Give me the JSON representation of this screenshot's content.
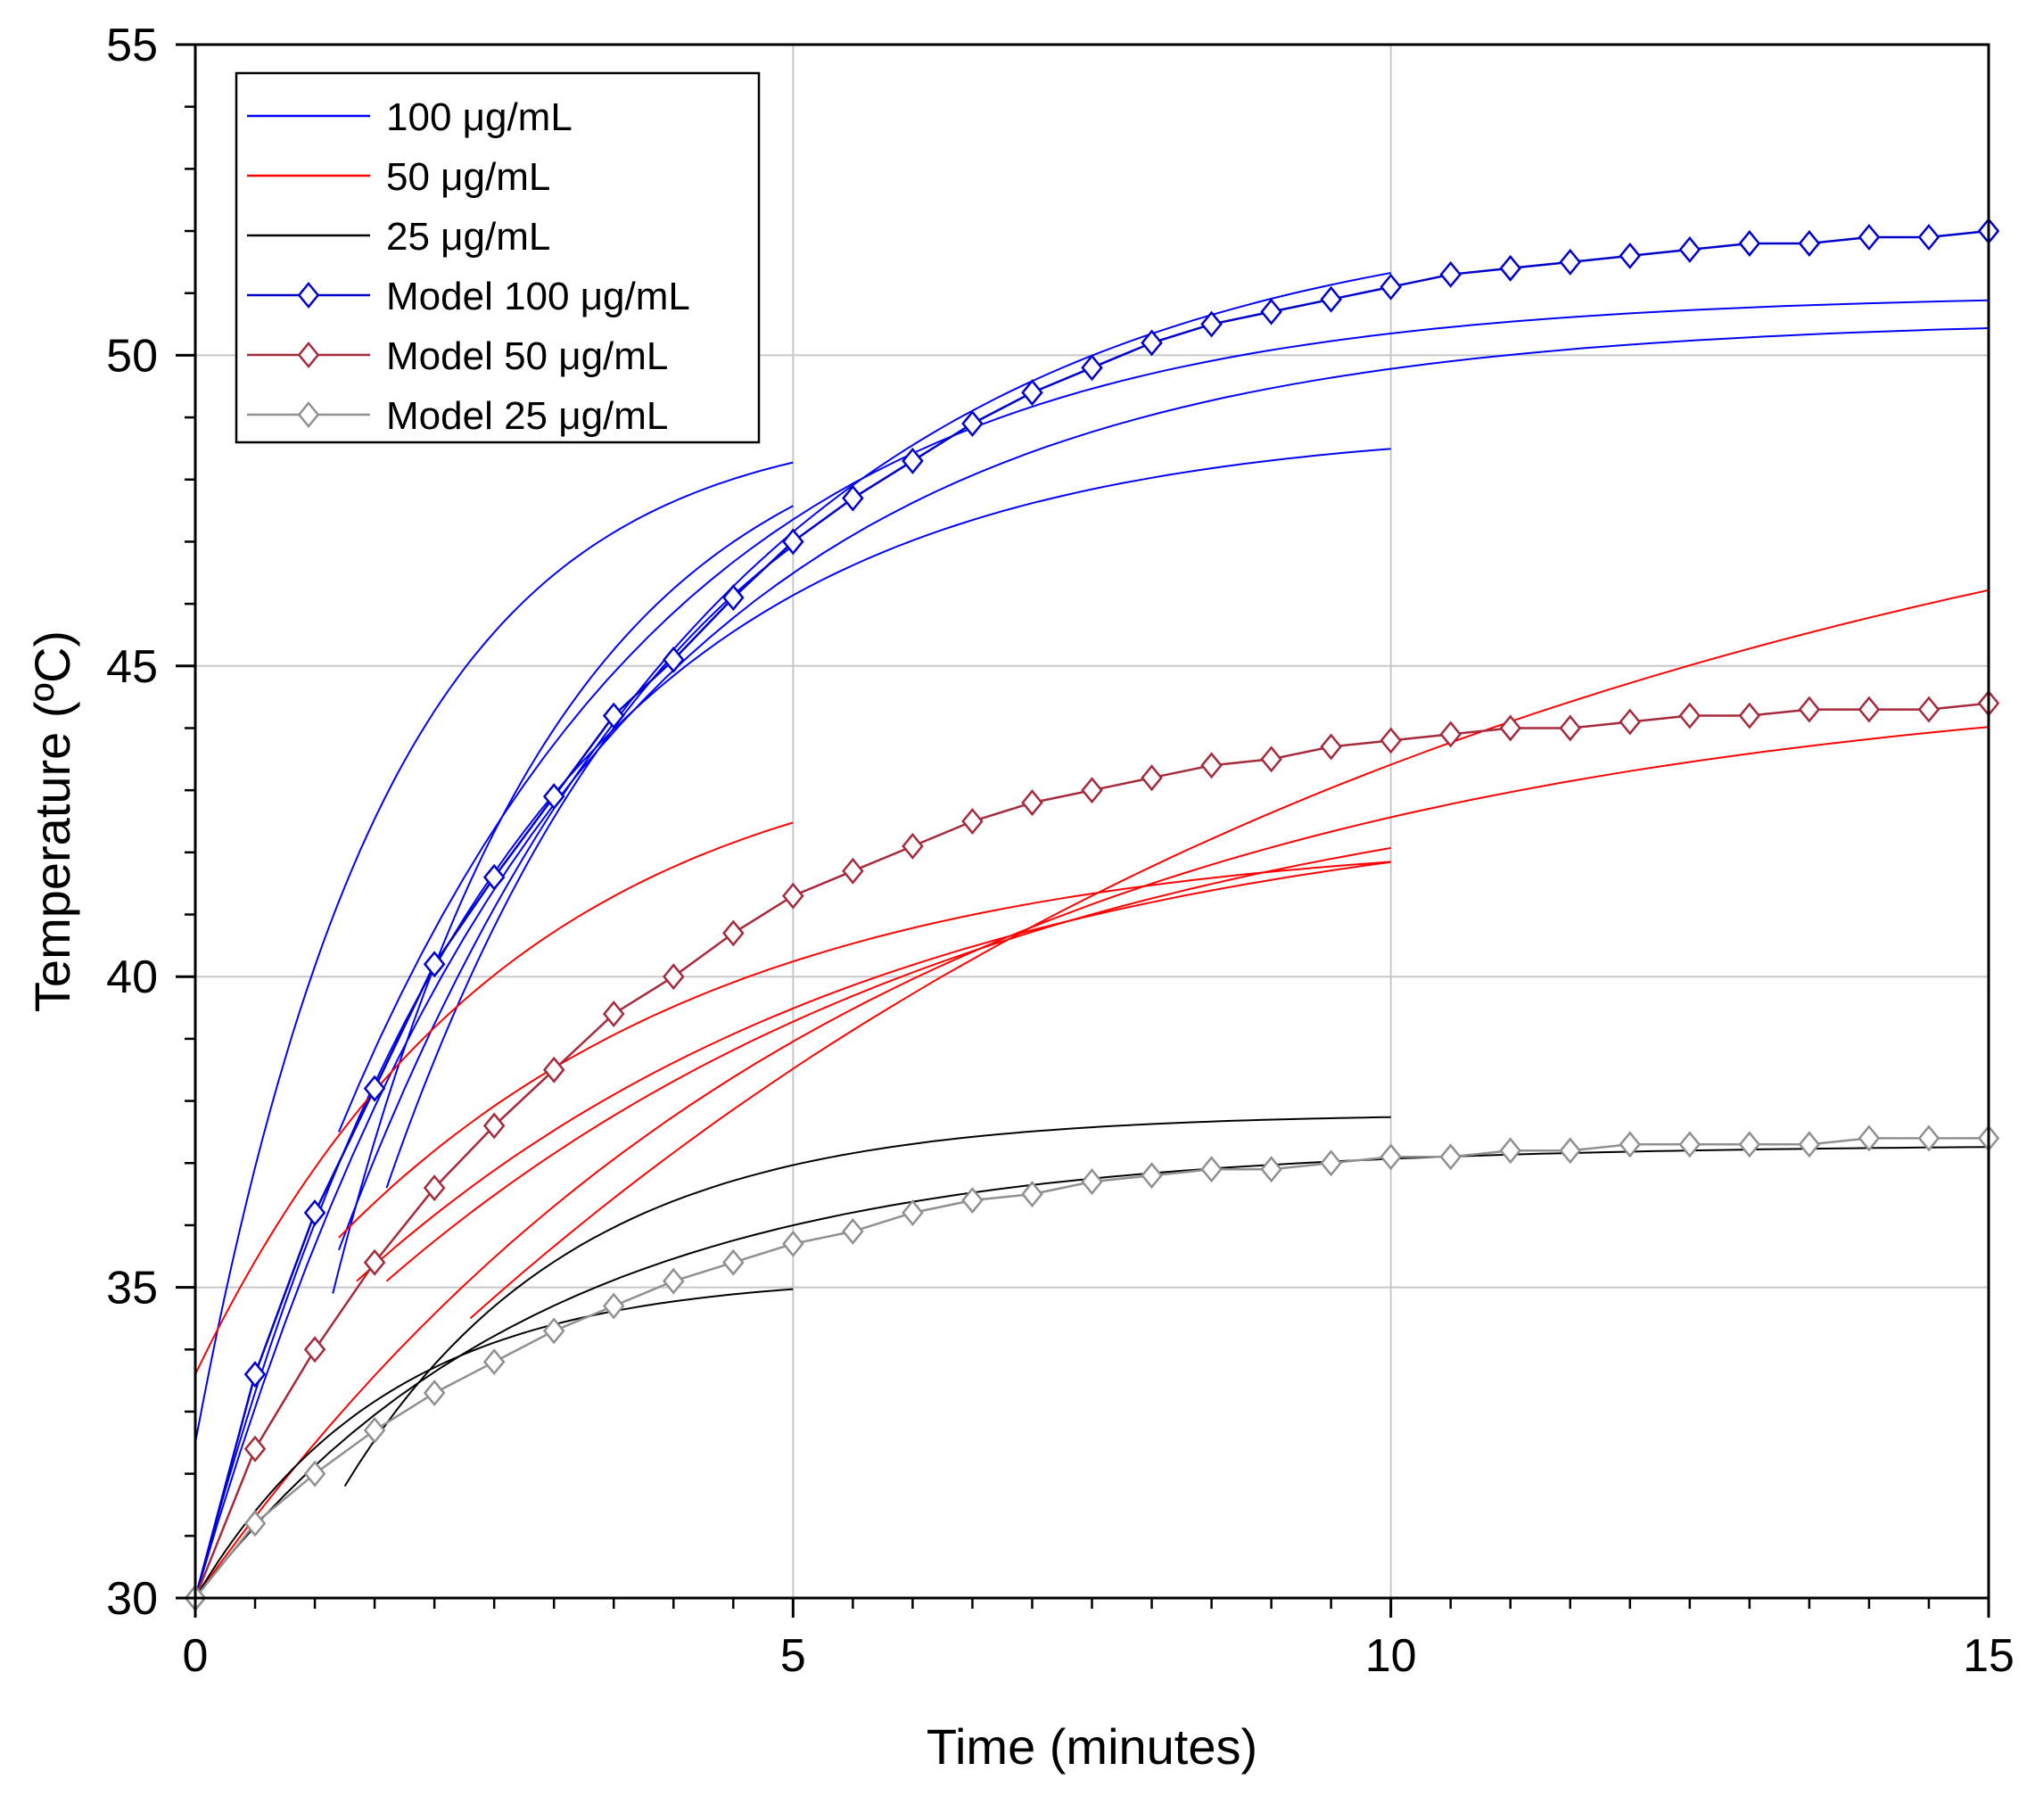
{
  "chart_data": {
    "type": "line",
    "xlabel": "Time (minutes)",
    "ylabel": "Temperature (ºC)",
    "xlim": [
      0,
      15
    ],
    "ylim": [
      30,
      55
    ],
    "xticks": [
      0,
      5,
      10,
      15
    ],
    "xticks_minor": [
      0.5,
      1,
      1.5,
      2,
      2.5,
      3,
      3.5,
      4,
      4.5,
      5.5,
      6,
      6.5,
      7,
      7.5,
      8,
      8.5,
      9,
      9.5,
      10.5,
      11,
      11.5,
      12,
      12.5,
      13,
      13.5,
      14,
      14.5
    ],
    "yticks": [
      30,
      35,
      40,
      45,
      50,
      55
    ],
    "yticks_minor": [
      31,
      32,
      33,
      34,
      36,
      37,
      38,
      39,
      41,
      42,
      43,
      44,
      46,
      47,
      48,
      49,
      51,
      52,
      53,
      54
    ],
    "grid": true,
    "legend": {
      "position": "top-left",
      "entries": [
        {
          "label": "100 μg/mL",
          "color": "#0000ff",
          "marker": "none"
        },
        {
          "label": "50 μg/mL",
          "color": "#ff0000",
          "marker": "none"
        },
        {
          "label": "25 μg/mL",
          "color": "#000000",
          "marker": "none"
        },
        {
          "label": "Model 100 μg/mL",
          "color": "#0000cc",
          "marker": "diamond"
        },
        {
          "label": "Model 50 μg/mL",
          "color": "#a52a3c",
          "marker": "diamond"
        },
        {
          "label": "Model 25 μg/mL",
          "color": "#909090",
          "marker": "diamond"
        }
      ]
    },
    "experimental_curves": [
      {
        "group": "100 μg/mL",
        "color": "#0000ff",
        "t0": 0.0,
        "t1": 5,
        "y0": 32.5,
        "yinf": 49.0,
        "tau": 1.6
      },
      {
        "group": "100 μg/mL",
        "color": "#0000ff",
        "t0": 0.0,
        "t1": 10,
        "y0": 30.0,
        "yinf": 48.9,
        "tau": 2.6
      },
      {
        "group": "100 μg/mL",
        "color": "#0000ff",
        "t0": 0.0,
        "t1": 15,
        "y0": 30.0,
        "yinf": 50.6,
        "tau": 3.1
      },
      {
        "group": "100 μg/mL",
        "color": "#0000ff",
        "t0": 1.2,
        "t1": 15,
        "y0": 37.5,
        "yinf": 51.0,
        "tau": 2.9
      },
      {
        "group": "100 μg/mL",
        "color": "#0000ff",
        "t0": 1.2,
        "t1": 10,
        "y0": 35.6,
        "yinf": 52.5,
        "tau": 3.3
      },
      {
        "group": "100 μg/mL",
        "color": "#0000ff",
        "t0": 1.15,
        "t1": 5,
        "y0": 34.9,
        "yinf": 49.5,
        "tau": 1.9
      },
      {
        "group": "100 μg/mL",
        "color": "#0000ff",
        "t0": 1.6,
        "t1": 5,
        "y0": 36.6,
        "yinf": 50.5,
        "tau": 2.5
      },
      {
        "group": "50 μg/mL",
        "color": "#ff0000",
        "t0": 0.0,
        "t1": 5,
        "y0": 33.6,
        "yinf": 44.0,
        "tau": 2.6
      },
      {
        "group": "50 μg/mL",
        "color": "#ff0000",
        "t0": 0.0,
        "t1": 15,
        "y0": 30.0,
        "yinf": 45.0,
        "tau": 5.5
      },
      {
        "group": "50 μg/mL",
        "color": "#ff0000",
        "t0": 1.2,
        "t1": 10,
        "y0": 35.8,
        "yinf": 42.3,
        "tau": 3.3
      },
      {
        "group": "50 μg/mL",
        "color": "#ff0000",
        "t0": 1.35,
        "t1": 10,
        "y0": 35.1,
        "yinf": 43.0,
        "tau": 4.5
      },
      {
        "group": "50 μg/mL",
        "color": "#ff0000",
        "t0": 1.6,
        "t1": 10,
        "y0": 35.1,
        "yinf": 43.8,
        "tau": 5.2
      },
      {
        "group": "50 μg/mL",
        "color": "#ff0000",
        "t0": 2.3,
        "t1": 15,
        "y0": 34.5,
        "yinf": 50.0,
        "tau": 9.0
      },
      {
        "group": "25 μg/mL",
        "color": "#000000",
        "t0": 0.0,
        "t1": 5,
        "y0": 30.0,
        "yinf": 35.2,
        "tau": 1.6
      },
      {
        "group": "25 μg/mL",
        "color": "#000000",
        "t0": 1.25,
        "t1": 10,
        "y0": 31.8,
        "yinf": 37.8,
        "tau": 1.9
      },
      {
        "group": "25 μg/mL",
        "color": "#000000",
        "t0": 0.0,
        "t1": 15,
        "y0": 30.0,
        "yinf": 37.3,
        "tau": 2.9
      }
    ],
    "series": [
      {
        "name": "Model 100 μg/mL",
        "color": "#0000cc",
        "x": [
          0,
          0.5,
          1,
          1.5,
          2,
          2.5,
          3,
          3.5,
          4,
          4.5,
          5,
          5.5,
          6,
          6.5,
          7,
          7.5,
          8,
          8.5,
          9,
          9.5,
          10,
          10.5,
          11,
          11.5,
          12,
          12.5,
          13,
          13.5,
          14,
          14.5,
          15
        ],
        "values": [
          30.0,
          33.6,
          36.2,
          38.2,
          40.2,
          41.6,
          42.9,
          44.2,
          45.1,
          46.1,
          47.0,
          47.7,
          48.3,
          48.9,
          49.4,
          49.8,
          50.2,
          50.5,
          50.7,
          50.9,
          51.1,
          51.3,
          51.4,
          51.5,
          51.6,
          51.7,
          51.8,
          51.8,
          51.9,
          51.9,
          52.0
        ]
      },
      {
        "name": "Model 50 μg/mL",
        "color": "#a52a3c",
        "x": [
          0,
          0.5,
          1,
          1.5,
          2,
          2.5,
          3,
          3.5,
          4,
          4.5,
          5,
          5.5,
          6,
          6.5,
          7,
          7.5,
          8,
          8.5,
          9,
          9.5,
          10,
          10.5,
          11,
          11.5,
          12,
          12.5,
          13,
          13.5,
          14,
          14.5,
          15
        ],
        "values": [
          30.0,
          32.4,
          34.0,
          35.4,
          36.6,
          37.6,
          38.5,
          39.4,
          40.0,
          40.7,
          41.3,
          41.7,
          42.1,
          42.5,
          42.8,
          43.0,
          43.2,
          43.4,
          43.5,
          43.7,
          43.8,
          43.9,
          44.0,
          44.0,
          44.1,
          44.2,
          44.2,
          44.3,
          44.3,
          44.3,
          44.4
        ]
      },
      {
        "name": "Model 25 μg/mL",
        "color": "#909090",
        "x": [
          0,
          0.5,
          1,
          1.5,
          2,
          2.5,
          3,
          3.5,
          4,
          4.5,
          5,
          5.5,
          6,
          6.5,
          7,
          7.5,
          8,
          8.5,
          9,
          9.5,
          10,
          10.5,
          11,
          11.5,
          12,
          12.5,
          13,
          13.5,
          14,
          14.5,
          15
        ],
        "values": [
          30.0,
          31.2,
          32.0,
          32.7,
          33.3,
          33.8,
          34.3,
          34.7,
          35.1,
          35.4,
          35.7,
          35.9,
          36.2,
          36.4,
          36.5,
          36.7,
          36.8,
          36.9,
          36.9,
          37.0,
          37.1,
          37.1,
          37.2,
          37.2,
          37.3,
          37.3,
          37.3,
          37.3,
          37.4,
          37.4,
          37.4
        ]
      }
    ]
  }
}
